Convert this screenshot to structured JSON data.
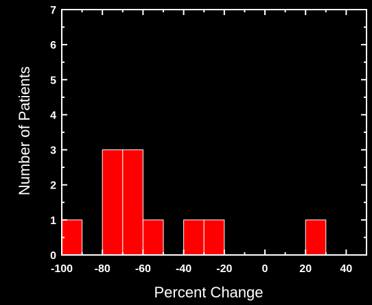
{
  "chart_data": {
    "type": "bar",
    "title": "",
    "xlabel": "Percent Change",
    "ylabel": "Number of Patients",
    "xlim": [
      -100,
      50
    ],
    "ylim": [
      0,
      7
    ],
    "x_ticks": [
      -100,
      -80,
      -60,
      -40,
      -20,
      0,
      20,
      40
    ],
    "y_ticks": [
      0,
      1,
      2,
      3,
      4,
      5,
      6,
      7
    ],
    "bin_width": 10,
    "bins": [
      {
        "start": -100,
        "end": -90,
        "count": 1
      },
      {
        "start": -90,
        "end": -80,
        "count": 0
      },
      {
        "start": -80,
        "end": -70,
        "count": 3
      },
      {
        "start": -70,
        "end": -60,
        "count": 3
      },
      {
        "start": -60,
        "end": -50,
        "count": 1
      },
      {
        "start": -50,
        "end": -40,
        "count": 0
      },
      {
        "start": -40,
        "end": -30,
        "count": 1
      },
      {
        "start": -30,
        "end": -20,
        "count": 1
      },
      {
        "start": -20,
        "end": -10,
        "count": 0
      },
      {
        "start": -10,
        "end": 0,
        "count": 0
      },
      {
        "start": 0,
        "end": 10,
        "count": 0
      },
      {
        "start": 10,
        "end": 20,
        "count": 0
      },
      {
        "start": 20,
        "end": 30,
        "count": 1
      },
      {
        "start": 30,
        "end": 40,
        "count": 0
      }
    ],
    "bar_color": "#ff0000",
    "bar_edge_color": "#ffffff",
    "axis_color": "#ffffff",
    "background_color": "#000000",
    "grid": false,
    "legend": "none"
  }
}
